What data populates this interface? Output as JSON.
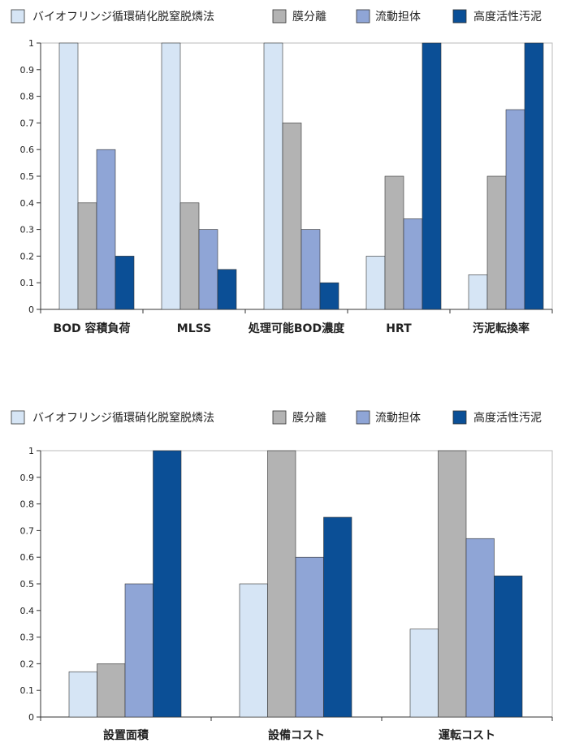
{
  "chart_data": [
    {
      "type": "bar",
      "title": "",
      "xlabel": "",
      "ylabel": "",
      "ylim": [
        0,
        1
      ],
      "yticks": [
        "0",
        "0.1",
        "0.2",
        "0.3",
        "0.4",
        "0.5",
        "0.6",
        "0.7",
        "0.8",
        "0.9",
        "1"
      ],
      "grid": false,
      "legend_position": "top",
      "categories": [
        "BOD 容積負荷",
        "MLSS",
        "処理可能BOD濃度",
        "HRT",
        "汚泥転換率"
      ],
      "series": [
        {
          "name": "バイオフリンジ循環硝化脱窒脱燐法",
          "color": "#d6e5f5",
          "values": [
            1.0,
            1.0,
            1.0,
            0.2,
            0.13
          ]
        },
        {
          "name": "膜分離",
          "color": "#b3b3b3",
          "values": [
            0.4,
            0.4,
            0.7,
            0.5,
            0.5
          ]
        },
        {
          "name": "流動担体",
          "color": "#8fa5d6",
          "values": [
            0.6,
            0.3,
            0.3,
            0.34,
            0.75
          ]
        },
        {
          "name": "高度活性汚泥",
          "color": "#0b4f96",
          "values": [
            0.2,
            0.15,
            0.1,
            1.0,
            1.0
          ]
        }
      ]
    },
    {
      "type": "bar",
      "title": "",
      "xlabel": "",
      "ylabel": "",
      "ylim": [
        0,
        1
      ],
      "yticks": [
        "0",
        "0.1",
        "0.2",
        "0.3",
        "0.4",
        "0.5",
        "0.6",
        "0.7",
        "0.8",
        "0.9",
        "1"
      ],
      "grid": false,
      "legend_position": "top",
      "categories": [
        "設置面積",
        "設備コスト",
        "運転コスト"
      ],
      "series": [
        {
          "name": "バイオフリンジ循環硝化脱窒脱燐法",
          "color": "#d6e5f5",
          "values": [
            0.17,
            0.5,
            0.33
          ]
        },
        {
          "name": "膜分離",
          "color": "#b3b3b3",
          "values": [
            0.2,
            1.0,
            1.0
          ]
        },
        {
          "name": "流動担体",
          "color": "#8fa5d6",
          "values": [
            0.5,
            0.6,
            0.67
          ]
        },
        {
          "name": "高度活性汚泥",
          "color": "#0b4f96",
          "values": [
            1.0,
            0.75,
            0.53
          ]
        }
      ]
    }
  ]
}
